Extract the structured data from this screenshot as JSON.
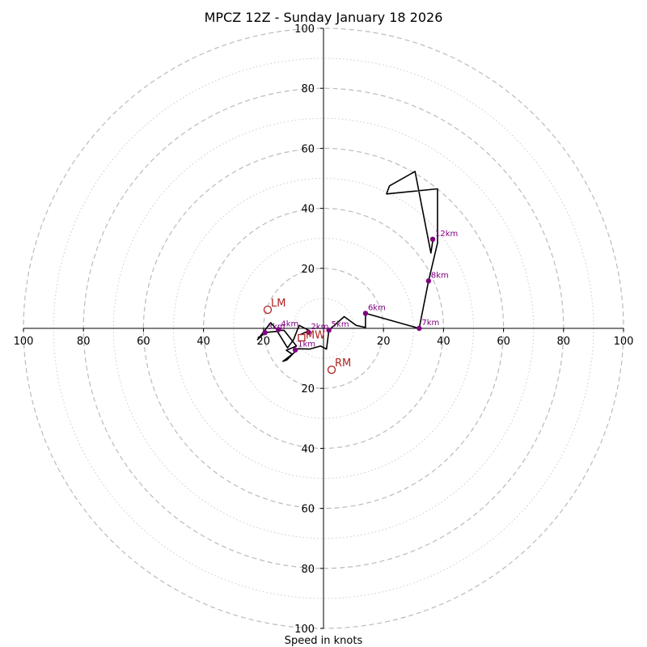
{
  "chart_data": {
    "type": "hodograph",
    "title": "MPCZ 12Z - Sunday January 18 2026",
    "xlabel": "Speed in knots",
    "ylabel": "",
    "range_knots": 100,
    "rings_dashed": [
      20,
      40,
      60,
      80,
      100
    ],
    "rings_dotted": [
      10,
      30,
      50,
      70,
      90
    ],
    "x_ticks": [
      {
        "value": -100,
        "label": "100"
      },
      {
        "value": -80,
        "label": "80"
      },
      {
        "value": -60,
        "label": "60"
      },
      {
        "value": -40,
        "label": "40"
      },
      {
        "value": -20,
        "label": "20"
      },
      {
        "value": 20,
        "label": "20"
      },
      {
        "value": 40,
        "label": "40"
      },
      {
        "value": 60,
        "label": "60"
      },
      {
        "value": 80,
        "label": "80"
      },
      {
        "value": 100,
        "label": "100"
      }
    ],
    "y_ticks": [
      {
        "value": 100,
        "label": "100"
      },
      {
        "value": 80,
        "label": "80"
      },
      {
        "value": 60,
        "label": "60"
      },
      {
        "value": 40,
        "label": "40"
      },
      {
        "value": 20,
        "label": "20"
      },
      {
        "value": -20,
        "label": "20"
      },
      {
        "value": -40,
        "label": "40"
      },
      {
        "value": -60,
        "label": "60"
      },
      {
        "value": -80,
        "label": "80"
      },
      {
        "value": -100,
        "label": "100"
      }
    ],
    "hodograph_trace": {
      "color": "#000000",
      "points": [
        [
          -7.8,
          -2.1
        ],
        [
          -6.2,
          -1.4
        ],
        [
          -4.6,
          -0.8
        ],
        [
          -8.1,
          1.0
        ],
        [
          -10.0,
          -3.8
        ],
        [
          -12.0,
          -6.5
        ],
        [
          -15.4,
          -1.0
        ],
        [
          -19.5,
          -1.4
        ],
        [
          -22.0,
          -3.8
        ],
        [
          -17.6,
          1.9
        ],
        [
          -15.4,
          -0.6
        ],
        [
          -13.1,
          -0.7
        ],
        [
          -9.0,
          -5.9
        ],
        [
          -12.4,
          -7.3
        ],
        [
          -10.4,
          -8.6
        ],
        [
          -13.5,
          -11.0
        ],
        [
          -12.2,
          -10.5
        ],
        [
          -8.5,
          -6.8
        ],
        [
          -4.6,
          -6.9
        ],
        [
          -1.0,
          -5.9
        ],
        [
          1.0,
          -6.9
        ],
        [
          1.8,
          -0.6
        ],
        [
          6.9,
          3.9
        ],
        [
          10.9,
          1.0
        ],
        [
          14.0,
          0.3
        ],
        [
          14.0,
          5.0
        ],
        [
          31.9,
          0.0
        ],
        [
          35.0,
          15.8
        ],
        [
          38.0,
          28.5
        ],
        [
          38.0,
          46.5
        ],
        [
          21.0,
          44.8
        ],
        [
          22.0,
          47.5
        ],
        [
          30.5,
          52.3
        ],
        [
          35.4,
          27.2
        ],
        [
          35.8,
          25.1
        ],
        [
          36.5,
          29.7
        ],
        [
          36.4,
          30.0
        ]
      ]
    },
    "height_points": [
      {
        "label": "1km",
        "u": -9.4,
        "v": -7.2
      },
      {
        "label": "2km",
        "u": -5.0,
        "v": -1.3
      },
      {
        "label": "3km",
        "u": -19.5,
        "v": -1.4
      },
      {
        "label": "4km",
        "u": -15.0,
        "v": -0.4
      },
      {
        "label": "5km",
        "u": 1.8,
        "v": -0.6
      },
      {
        "label": "6km",
        "u": 14.0,
        "v": 5.0
      },
      {
        "label": "7km",
        "u": 31.9,
        "v": 0.0
      },
      {
        "label": "8km",
        "u": 35.0,
        "v": 15.8
      },
      {
        "label": "12km",
        "u": 36.4,
        "v": 29.7
      }
    ],
    "height_point_color": "#800080",
    "storm_motion": [
      {
        "label": "LM",
        "u": -18.6,
        "v": 6.2
      },
      {
        "label": "RM",
        "u": 2.7,
        "v": -13.8
      }
    ],
    "storm_motion_color": "#b22222",
    "mean_wind": {
      "label": "MW",
      "u": -7.3,
      "v": -3.1,
      "color": "#b22222"
    }
  }
}
